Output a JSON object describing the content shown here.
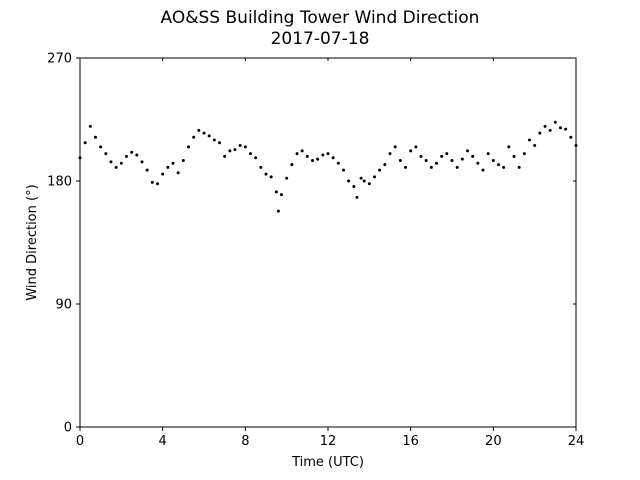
{
  "chart_data": {
    "type": "scatter",
    "title": "AO&SS Building Tower Wind Direction",
    "subtitle": "2017-07-18",
    "xlabel": "Time (UTC)",
    "ylabel": "Wind Direction (°)",
    "xlim": [
      0,
      24
    ],
    "ylim": [
      0,
      270
    ],
    "xticks": [
      0,
      4,
      8,
      12,
      16,
      20,
      24
    ],
    "yticks": [
      0,
      90,
      180,
      270
    ],
    "grid": false,
    "marker_color": "#000000",
    "series": [
      {
        "x": [
          0.0,
          0.25,
          0.5,
          0.75,
          1.0,
          1.25,
          1.5,
          1.75,
          2.0,
          2.25,
          2.5,
          2.75,
          3.0,
          3.25,
          3.5,
          3.75,
          4.0,
          4.25,
          4.5,
          4.75,
          5.0,
          5.25,
          5.5,
          5.75,
          6.0,
          6.25,
          6.5,
          6.75,
          7.0,
          7.25,
          7.5,
          7.75,
          8.0,
          8.25,
          8.5,
          8.75,
          9.0,
          9.25,
          9.5,
          9.6,
          9.75,
          10.0,
          10.25,
          10.5,
          10.75,
          11.0,
          11.25,
          11.5,
          11.75,
          12.0,
          12.25,
          12.5,
          12.75,
          13.0,
          13.25,
          13.4,
          13.6,
          13.75,
          14.0,
          14.25,
          14.5,
          14.75,
          15.0,
          15.25,
          15.5,
          15.75,
          16.0,
          16.25,
          16.5,
          16.75,
          17.0,
          17.25,
          17.5,
          17.75,
          18.0,
          18.25,
          18.5,
          18.75,
          19.0,
          19.25,
          19.5,
          19.75,
          20.0,
          20.25,
          20.5,
          20.75,
          21.0,
          21.25,
          21.5,
          21.75,
          22.0,
          22.25,
          22.5,
          22.75,
          23.0,
          23.25,
          23.5,
          23.75,
          24.0
        ],
        "y": [
          197,
          208,
          220,
          212,
          205,
          200,
          194,
          190,
          193,
          198,
          201,
          199,
          194,
          188,
          179,
          178,
          185,
          190,
          193,
          186,
          195,
          205,
          212,
          217,
          215,
          213,
          210,
          208,
          198,
          202,
          203,
          206,
          205,
          200,
          197,
          190,
          185,
          183,
          172,
          158,
          170,
          182,
          192,
          200,
          202,
          198,
          195,
          196,
          199,
          200,
          197,
          193,
          188,
          180,
          176,
          168,
          182,
          180,
          178,
          183,
          188,
          192,
          200,
          205,
          195,
          190,
          202,
          205,
          198,
          195,
          190,
          193,
          198,
          200,
          195,
          190,
          196,
          202,
          198,
          193,
          188,
          200,
          195,
          192,
          190,
          205,
          198,
          190,
          200,
          210,
          206,
          215,
          220,
          217,
          223,
          219,
          218,
          212,
          206
        ]
      }
    ]
  }
}
